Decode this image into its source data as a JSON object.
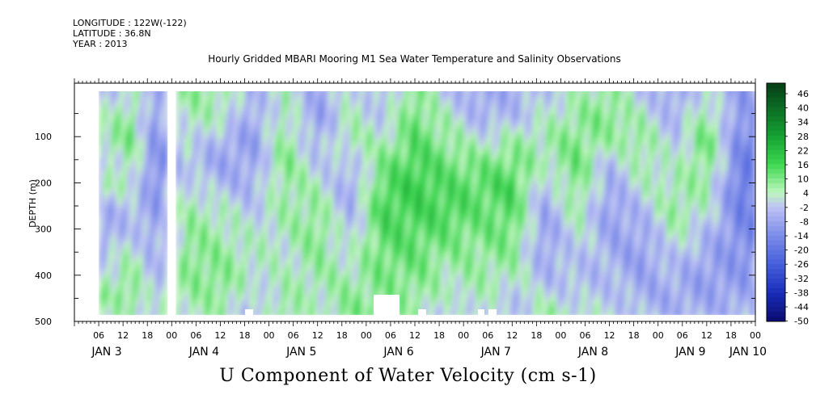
{
  "header": {
    "longitude": "LONGITUDE : 122W(-122)",
    "latitude": "LATITUDE : 36.8N",
    "year": "YEAR : 2013"
  },
  "chart_data": {
    "type": "heatmap",
    "title": "Hourly Gridded MBARI Mooring M1 Sea Water Temperature and Salinity Observations",
    "colorbar_title": "U Component of Water Velocity (cm s-1)",
    "ylabel": "DEPTH (m)",
    "ylim": [
      500,
      0
    ],
    "y_ticks": [
      100,
      200,
      300,
      400,
      500
    ],
    "x_range_hours": [
      0,
      168
    ],
    "x_hour_ticks": [
      "06",
      "12",
      "18",
      "00",
      "06",
      "12",
      "18",
      "00",
      "06",
      "12",
      "18",
      "00",
      "06",
      "12",
      "18",
      "00",
      "06",
      "12",
      "18",
      "00",
      "06",
      "12",
      "18",
      "00",
      "06",
      "12",
      "18",
      "00",
      "06",
      "12",
      "18",
      "00"
    ],
    "x_day_labels": [
      "JAN  3",
      "JAN  4",
      "JAN  5",
      "JAN  6",
      "JAN  7",
      "JAN  8",
      "JAN  9",
      "JAN 10"
    ],
    "colorbar_levels": [
      "46",
      "40",
      "34",
      "28",
      "22",
      "16",
      "10",
      "4",
      "-2",
      "-8",
      "-14",
      "-20",
      "-26",
      "-32",
      "-38",
      "-44",
      "-50"
    ],
    "colorbar_range": [
      -50,
      50
    ],
    "data_gaps_hours": [
      [
        0,
        6
      ],
      [
        23,
        25
      ]
    ],
    "column_profiles": [
      {
        "hour": 7,
        "u": [
          -4,
          2,
          6,
          -2,
          4,
          -6,
          -8,
          -2,
          4,
          6,
          2
        ]
      },
      {
        "hour": 14,
        "u": [
          4,
          8,
          10,
          6,
          2,
          -4,
          -2,
          4,
          8,
          10,
          6
        ]
      },
      {
        "hour": 20,
        "u": [
          -8,
          -10,
          -12,
          -14,
          -12,
          -10,
          -8,
          -6,
          -4,
          -2,
          0
        ]
      },
      {
        "hour": 28,
        "u": [
          8,
          4,
          2,
          -4,
          2,
          6,
          8,
          10,
          8,
          6,
          4
        ]
      },
      {
        "hour": 36,
        "u": [
          6,
          4,
          -6,
          -8,
          -4,
          4,
          6,
          8,
          10,
          8,
          6
        ]
      },
      {
        "hour": 44,
        "u": [
          -6,
          -8,
          -10,
          -8,
          -6,
          -2,
          2,
          4,
          2,
          -2,
          -4
        ]
      },
      {
        "hour": 52,
        "u": [
          4,
          6,
          8,
          10,
          8,
          6,
          4,
          2,
          4,
          6,
          8
        ]
      },
      {
        "hour": 60,
        "u": [
          -8,
          -10,
          -6,
          -2,
          4,
          8,
          10,
          8,
          6,
          4,
          2
        ]
      },
      {
        "hour": 68,
        "u": [
          2,
          4,
          6,
          -4,
          -8,
          -6,
          -2,
          2,
          6,
          8,
          10
        ]
      },
      {
        "hour": 76,
        "u": [
          -4,
          -2,
          4,
          10,
          14,
          16,
          14,
          12,
          10,
          8,
          6
        ]
      },
      {
        "hour": 84,
        "u": [
          10,
          12,
          14,
          16,
          18,
          16,
          14,
          12,
          10,
          8,
          6
        ]
      },
      {
        "hour": 92,
        "u": [
          -2,
          4,
          8,
          12,
          14,
          16,
          12,
          8,
          4,
          2,
          -2
        ]
      },
      {
        "hour": 100,
        "u": [
          -8,
          -6,
          2,
          10,
          14,
          12,
          10,
          8,
          6,
          4,
          2
        ]
      },
      {
        "hour": 108,
        "u": [
          -6,
          -4,
          6,
          12,
          16,
          14,
          12,
          8,
          4,
          -2,
          -4
        ]
      },
      {
        "hour": 116,
        "u": [
          -2,
          2,
          6,
          4,
          -4,
          -8,
          -10,
          -8,
          -4,
          2,
          6
        ]
      },
      {
        "hour": 124,
        "u": [
          4,
          8,
          10,
          12,
          10,
          6,
          2,
          -2,
          -4,
          -2,
          2
        ]
      },
      {
        "hour": 132,
        "u": [
          8,
          10,
          6,
          -4,
          -8,
          -10,
          -8,
          -6,
          -4,
          -2,
          0
        ]
      },
      {
        "hour": 140,
        "u": [
          -2,
          4,
          8,
          6,
          2,
          -4,
          -8,
          -10,
          -8,
          -6,
          -4
        ]
      },
      {
        "hour": 148,
        "u": [
          -8,
          -6,
          -2,
          2,
          6,
          8,
          4,
          -2,
          -6,
          -8,
          -6
        ]
      },
      {
        "hour": 156,
        "u": [
          2,
          8,
          12,
          10,
          6,
          2,
          -4,
          -8,
          -10,
          -8,
          -6
        ]
      },
      {
        "hour": 164,
        "u": [
          -10,
          -12,
          -14,
          -16,
          -18,
          -16,
          -14,
          -12,
          -10,
          -8,
          -6
        ]
      }
    ],
    "profile_depths": [
      20,
      70,
      120,
      170,
      220,
      270,
      320,
      370,
      420,
      460,
      485
    ]
  }
}
